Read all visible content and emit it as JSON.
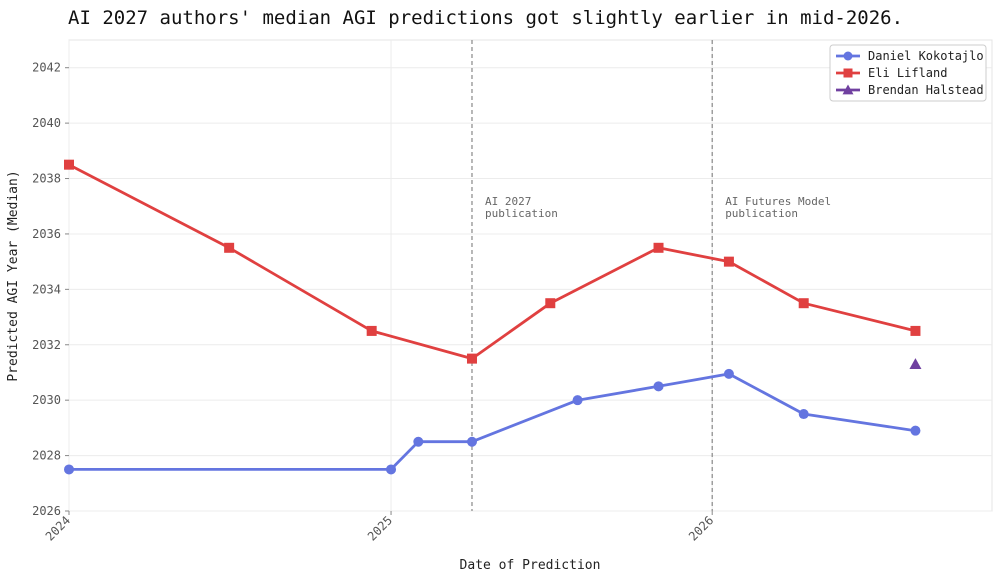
{
  "chart_data": {
    "type": "line",
    "title": "AI 2027 authors' median AGI predictions got slightly earlier in mid-2026.",
    "xlabel": "Date of Prediction",
    "ylabel": "Predicted AGI Year (Median)",
    "xlim": [
      "2024-01-01",
      "2026-11-15"
    ],
    "ylim": [
      2026,
      2043
    ],
    "x_ticks": [
      "2024",
      "2025",
      "2026"
    ],
    "y_ticks": [
      2026,
      2028,
      2030,
      2032,
      2034,
      2036,
      2038,
      2040,
      2042
    ],
    "grid": true,
    "legend_position": "top-right",
    "series": [
      {
        "name": "Daniel Kokotajlo",
        "color": "#6475e0",
        "marker": "circle",
        "points": [
          {
            "x": "2024-01-01",
            "y": 2027.5
          },
          {
            "x": "2025-01-01",
            "y": 2027.5
          },
          {
            "x": "2025-02-01",
            "y": 2028.5
          },
          {
            "x": "2025-04-03",
            "y": 2028.5
          },
          {
            "x": "2025-08-01",
            "y": 2030.0
          },
          {
            "x": "2025-11-01",
            "y": 2030.5
          },
          {
            "x": "2026-01-20",
            "y": 2030.95
          },
          {
            "x": "2026-04-15",
            "y": 2029.5
          },
          {
            "x": "2026-08-20",
            "y": 2028.9
          }
        ]
      },
      {
        "name": "Eli Lifland",
        "color": "#e04040",
        "marker": "square",
        "points": [
          {
            "x": "2024-01-01",
            "y": 2038.5
          },
          {
            "x": "2024-07-01",
            "y": 2035.5
          },
          {
            "x": "2024-12-10",
            "y": 2032.5
          },
          {
            "x": "2025-04-03",
            "y": 2031.5
          },
          {
            "x": "2025-07-01",
            "y": 2033.5
          },
          {
            "x": "2025-11-01",
            "y": 2035.5
          },
          {
            "x": "2026-01-20",
            "y": 2035.0
          },
          {
            "x": "2026-04-15",
            "y": 2033.5
          },
          {
            "x": "2026-08-20",
            "y": 2032.5
          }
        ]
      },
      {
        "name": "Brendan Halstead",
        "color": "#7040a0",
        "marker": "triangle",
        "points": [
          {
            "x": "2026-08-20",
            "y": 2031.3
          }
        ]
      }
    ],
    "annotations": [
      {
        "x": "2025-04-03",
        "text": [
          "AI 2027",
          "publication"
        ]
      },
      {
        "x": "2026-01-01",
        "text": [
          "AI Futures Model",
          "publication"
        ]
      }
    ]
  }
}
